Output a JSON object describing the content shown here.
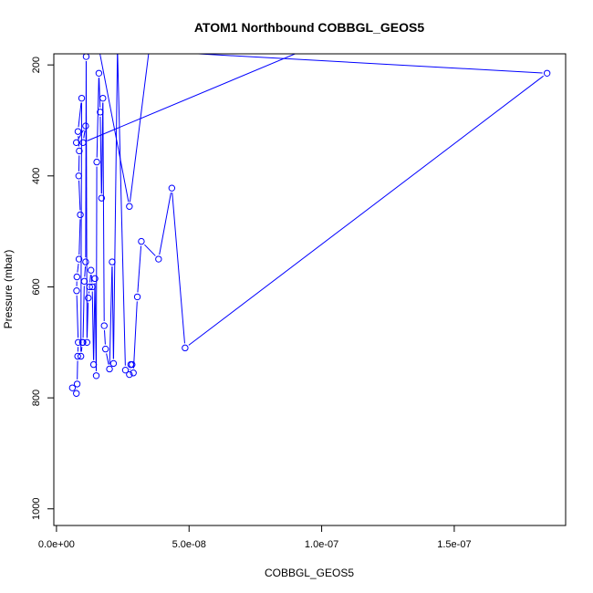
{
  "chart_data": {
    "type": "line",
    "title": "ATOM1 Northbound COBBGL_GEOS5",
    "xlabel": "COBBGL_GEOS5",
    "ylabel": "Pressure (mbar)",
    "xlim": [
      -1e-09,
      1.92e-07
    ],
    "ylim": [
      1030,
      180
    ],
    "y_reversed": true,
    "x_ticks": [
      0,
      5e-08,
      1e-07,
      1.5e-07
    ],
    "x_tick_labels": [
      "0.0e+00",
      "5.0e-08",
      "1.0e-07",
      "1.5e-07"
    ],
    "y_ticks": [
      200,
      400,
      600,
      800,
      1000
    ],
    "y_tick_labels": [
      "200",
      "400",
      "600",
      "800",
      "1000"
    ],
    "grid": false,
    "legend": "none",
    "series_color": "#0000ff",
    "series": [
      {
        "x": [
          6e-09,
          7.5e-09,
          7.8e-09,
          8e-09,
          8.2e-09,
          7.6e-09,
          7.7e-09,
          8.5e-09,
          9e-09,
          8.4e-09,
          8.6e-09,
          8.1e-09,
          9.5e-09,
          9.2e-09,
          9.8e-09,
          1e-08,
          1.05e-08,
          1.1e-08,
          1.12e-08,
          1.15e-08,
          1.2e-08,
          1.25e-08,
          1.3e-08,
          1.35e-08,
          1.4e-08,
          1.45e-08,
          1.5e-08,
          1.52e-08,
          1.6e-08,
          1.65e-08,
          1.7e-08,
          1.75e-08,
          1.8e-08,
          1.85e-08,
          2e-08,
          2.1e-08,
          2.15e-08,
          2.3e-08,
          2.6e-08,
          2.75e-08,
          2.8e-08,
          2.85e-08,
          2.9e-08,
          3.05e-08,
          3.2e-08,
          3.85e-08,
          4.35e-08,
          4.85e-08,
          1.85e-07,
          1.6e-08,
          2.75e-08,
          3.5e-08,
          5e-08,
          8e-08,
          9.5e-08,
          1e-08,
          1.1e-08,
          7.5e-09
        ],
        "y": [
          782,
          792,
          775,
          725,
          700,
          607,
          582,
          550,
          470,
          400,
          355,
          320,
          260,
          725,
          700,
          700,
          590,
          555,
          185,
          700,
          620,
          600,
          570,
          600,
          740,
          585,
          760,
          375,
          215,
          285,
          440,
          260,
          670,
          712,
          748,
          555,
          738,
          170,
          750,
          758,
          740,
          740,
          755,
          618,
          518,
          550,
          422,
          710,
          215,
          170,
          455,
          170,
          170,
          170,
          170,
          340,
          310,
          340
        ]
      }
    ]
  }
}
